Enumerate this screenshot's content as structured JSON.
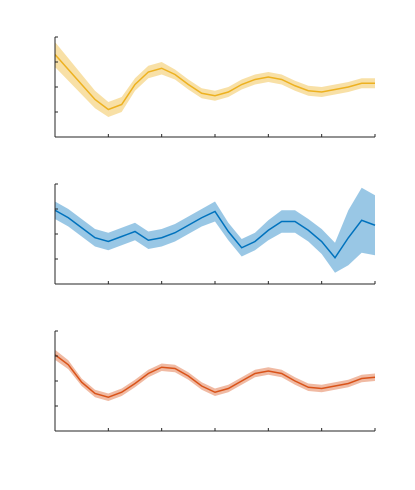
{
  "chart_data": [
    {
      "type": "line",
      "x": [
        0,
        0.25,
        0.5,
        0.75,
        1,
        1.25,
        1.5,
        1.75,
        2,
        2.25,
        2.5,
        2.75,
        3,
        3.25,
        3.5,
        3.75,
        4,
        4.25,
        4.5,
        4.75,
        5,
        5.25,
        5.5,
        5.75,
        6
      ],
      "xlim": [
        0,
        6
      ],
      "xticks": [
        0,
        1,
        2,
        3,
        4,
        5,
        6
      ],
      "ylim": [
        0,
        4
      ],
      "yticks": [
        0,
        1,
        2,
        3,
        4
      ],
      "series": [
        {
          "color": "#EDB120",
          "values": [
            3.3,
            2.7,
            2.1,
            1.5,
            1.1,
            1.3,
            2.1,
            2.6,
            2.75,
            2.5,
            2.1,
            1.75,
            1.65,
            1.8,
            2.1,
            2.3,
            2.4,
            2.3,
            2.05,
            1.85,
            1.8,
            1.9,
            2.0,
            2.15,
            2.15
          ],
          "error": [
            0.5,
            0.45,
            0.4,
            0.35,
            0.3,
            0.3,
            0.25,
            0.25,
            0.25,
            0.2,
            0.2,
            0.2,
            0.2,
            0.2,
            0.2,
            0.2,
            0.2,
            0.2,
            0.2,
            0.2,
            0.2,
            0.2,
            0.2,
            0.2,
            0.2
          ]
        }
      ]
    },
    {
      "type": "line",
      "x": [
        0,
        0.25,
        0.5,
        0.75,
        1,
        1.25,
        1.5,
        1.75,
        2,
        2.25,
        2.5,
        2.75,
        3,
        3.25,
        3.5,
        3.75,
        4,
        4.25,
        4.5,
        4.75,
        5,
        5.25,
        5.5,
        5.75,
        6
      ],
      "xlim": [
        0,
        6
      ],
      "xticks": [
        0,
        1,
        2,
        3,
        4,
        5,
        6
      ],
      "ylim": [
        0,
        4
      ],
      "yticks": [
        0,
        1,
        2,
        3,
        4
      ],
      "series": [
        {
          "color": "#0072BD",
          "values": [
            2.95,
            2.65,
            2.25,
            1.85,
            1.7,
            1.9,
            2.1,
            1.75,
            1.85,
            2.05,
            2.35,
            2.65,
            2.9,
            2.1,
            1.45,
            1.7,
            2.15,
            2.5,
            2.5,
            2.15,
            1.7,
            1.05,
            1.85,
            2.55,
            2.35
          ],
          "error": [
            0.35,
            0.35,
            0.35,
            0.35,
            0.35,
            0.35,
            0.35,
            0.35,
            0.35,
            0.35,
            0.35,
            0.35,
            0.4,
            0.35,
            0.35,
            0.35,
            0.4,
            0.45,
            0.45,
            0.45,
            0.5,
            0.6,
            1.1,
            1.3,
            1.2
          ]
        }
      ]
    },
    {
      "type": "line",
      "x": [
        0,
        0.25,
        0.5,
        0.75,
        1,
        1.25,
        1.5,
        1.75,
        2,
        2.25,
        2.5,
        2.75,
        3,
        3.25,
        3.5,
        3.75,
        4,
        4.25,
        4.5,
        4.75,
        5,
        5.25,
        5.5,
        5.75,
        6
      ],
      "xlim": [
        0,
        6
      ],
      "xticks": [
        0,
        1,
        2,
        3,
        4,
        5,
        6
      ],
      "ylim": [
        0,
        4
      ],
      "yticks": [
        0,
        1,
        2,
        3,
        4
      ],
      "series": [
        {
          "color": "#D95319",
          "values": [
            3.05,
            2.65,
            1.95,
            1.5,
            1.35,
            1.55,
            1.9,
            2.3,
            2.55,
            2.5,
            2.2,
            1.8,
            1.55,
            1.7,
            2.0,
            2.3,
            2.4,
            2.3,
            2.0,
            1.75,
            1.7,
            1.8,
            1.9,
            2.1,
            2.15
          ],
          "error": [
            0.2,
            0.18,
            0.15,
            0.15,
            0.15,
            0.15,
            0.15,
            0.15,
            0.15,
            0.15,
            0.15,
            0.15,
            0.15,
            0.15,
            0.15,
            0.15,
            0.15,
            0.15,
            0.15,
            0.15,
            0.15,
            0.15,
            0.15,
            0.15,
            0.15
          ]
        }
      ]
    }
  ]
}
